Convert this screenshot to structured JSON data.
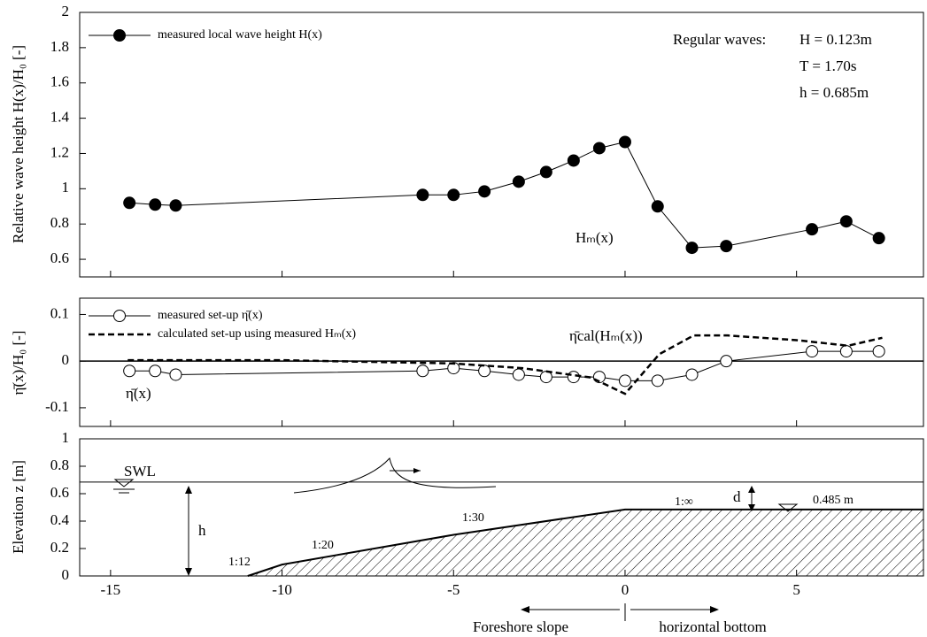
{
  "chart_data": [
    {
      "type": "line",
      "y_label": "Relative wave height  H(x)/H₀  [-]",
      "ylim": [
        0.5,
        2
      ],
      "yticks": [
        0.6,
        0.8,
        1,
        1.2,
        1.4,
        1.6,
        1.8,
        2
      ],
      "series": [
        {
          "name": "measured local wave height H(x)",
          "color": "#000000",
          "marker": "filled",
          "dashed": false,
          "x": [
            -14.45,
            -13.7,
            -13.1,
            -5.9,
            -5.0,
            -4.1,
            -3.1,
            -2.3,
            -1.5,
            -0.75,
            0,
            0.95,
            1.95,
            2.95,
            5.45,
            6.45,
            7.4
          ],
          "values": [
            0.92,
            0.91,
            0.905,
            0.965,
            0.965,
            0.985,
            1.04,
            1.095,
            1.16,
            1.23,
            1.265,
            0.9,
            0.665,
            0.675,
            0.77,
            0.815,
            0.72
          ]
        }
      ],
      "annotations": [
        "Hₘ(x)",
        "Regular waves:",
        "H = 0.123m",
        "T = 1.70s",
        "h = 0.685m"
      ]
    },
    {
      "type": "line",
      "y_label": "η̄(x)/H₀  [-]",
      "ylim": [
        -0.14,
        0.135
      ],
      "yticks": [
        -0.1,
        0,
        0.1
      ],
      "zero_line": true,
      "series": [
        {
          "name": "measured set-up η̄(x)",
          "color": "#000000",
          "marker": "open",
          "dashed": false,
          "x": [
            -14.45,
            -13.7,
            -13.1,
            -5.9,
            -5.0,
            -4.1,
            -3.1,
            -2.3,
            -1.5,
            -0.75,
            0,
            0.95,
            1.95,
            2.95,
            5.45,
            6.45,
            7.4
          ],
          "values": [
            -0.021,
            -0.021,
            -0.029,
            -0.021,
            -0.015,
            -0.021,
            -0.029,
            -0.034,
            -0.034,
            -0.034,
            -0.042,
            -0.042,
            -0.029,
            0,
            0.021,
            0.021,
            0.021
          ]
        },
        {
          "name": "calculated set-up using measured Hₘ(x)",
          "color": "#000000",
          "marker": "none",
          "dashed": true,
          "x": [
            -14.5,
            -10,
            -5,
            -3,
            -1,
            0,
            1,
            2,
            3,
            5,
            6.5,
            7.5
          ],
          "values": [
            0.002,
            0.002,
            -0.005,
            -0.015,
            -0.035,
            -0.07,
            0.015,
            0.055,
            0.055,
            0.045,
            0.033,
            0.05
          ]
        }
      ],
      "annotations": [
        "η̄cal(Hₘ(x))",
        "η̄(x)"
      ]
    },
    {
      "type": "area",
      "y_label": "Elevation  z  [m]",
      "ylim": [
        0,
        1
      ],
      "yticks": [
        0,
        0.2,
        0.4,
        0.6,
        0.8,
        1
      ],
      "xlim": [
        -15.9,
        8.7
      ],
      "xticks": [
        -15,
        -10,
        -5,
        0,
        5
      ],
      "x": [
        -11,
        -10,
        -5,
        0,
        8.7
      ],
      "values": [
        0,
        0.083,
        0.3,
        0.485,
        0.485
      ],
      "color": "#000000",
      "still_water_level": 0.685,
      "annotations": [
        "SWL",
        "h",
        "1:12",
        "1:20",
        "1:30",
        "1:∞",
        "d",
        "0.485 m"
      ],
      "x_notes": [
        "Foreshore slope",
        "horizontal bottom"
      ]
    }
  ]
}
